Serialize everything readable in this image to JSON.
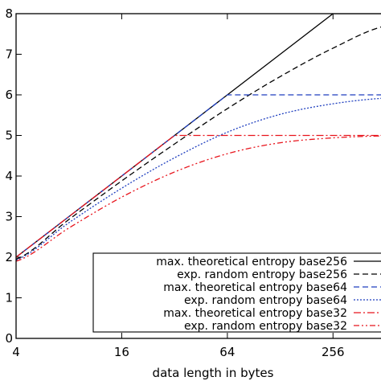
{
  "chart_data": {
    "type": "line",
    "xlabel": "data length in bytes",
    "ylabel": "",
    "x_scale": "log2",
    "xlim": [
      4,
      512
    ],
    "ylim": [
      0,
      8
    ],
    "x_ticks": [
      4,
      16,
      64,
      256
    ],
    "x_tick_labels": [
      "4",
      "16",
      "64",
      "256"
    ],
    "y_ticks": [
      0,
      1,
      2,
      3,
      4,
      5,
      6,
      7,
      8
    ],
    "y_tick_labels": [
      "0",
      "1",
      "2",
      "3",
      "4",
      "5",
      "6",
      "7",
      "8"
    ],
    "grid": false,
    "legend_position": "bottom-right",
    "series": [
      {
        "name": "max. theoretical entropy base256",
        "color": "#000000",
        "dash": "solid",
        "x": [
          4,
          8,
          16,
          32,
          64,
          128,
          256,
          512
        ],
        "y": [
          2,
          3,
          4,
          5,
          6,
          7,
          8,
          8
        ]
      },
      {
        "name": "exp. random entropy base256",
        "color": "#000000",
        "dash": "dashed",
        "x": [
          4,
          8,
          16,
          32,
          64,
          128,
          256,
          512
        ],
        "y": [
          1.95,
          2.93,
          3.88,
          4.79,
          5.66,
          6.45,
          7.15,
          7.7
        ]
      },
      {
        "name": "max. theoretical entropy base64",
        "color": "#1f3fbf",
        "dash": "dashed",
        "x": [
          4,
          8,
          16,
          32,
          64,
          128,
          256,
          512
        ],
        "y": [
          2,
          3,
          4,
          5,
          6,
          6,
          6,
          6
        ]
      },
      {
        "name": "exp. random entropy base64",
        "color": "#1f3fbf",
        "dash": "dotted",
        "x": [
          4,
          8,
          16,
          32,
          64,
          128,
          256,
          512
        ],
        "y": [
          1.93,
          2.85,
          3.7,
          4.45,
          5.08,
          5.52,
          5.78,
          5.92
        ]
      },
      {
        "name": "max. theoretical entropy base32",
        "color": "#e8141c",
        "dash": "dashdot",
        "x": [
          4,
          8,
          16,
          32,
          64,
          128,
          256,
          512
        ],
        "y": [
          2,
          3,
          4,
          5,
          5,
          5,
          5,
          5
        ]
      },
      {
        "name": "exp. random entropy base32",
        "color": "#e8141c",
        "dash": "dashdotdot",
        "x": [
          4,
          8,
          16,
          32,
          64,
          128,
          256,
          512
        ],
        "y": [
          1.9,
          2.72,
          3.48,
          4.1,
          4.55,
          4.82,
          4.94,
          4.99
        ]
      }
    ]
  }
}
